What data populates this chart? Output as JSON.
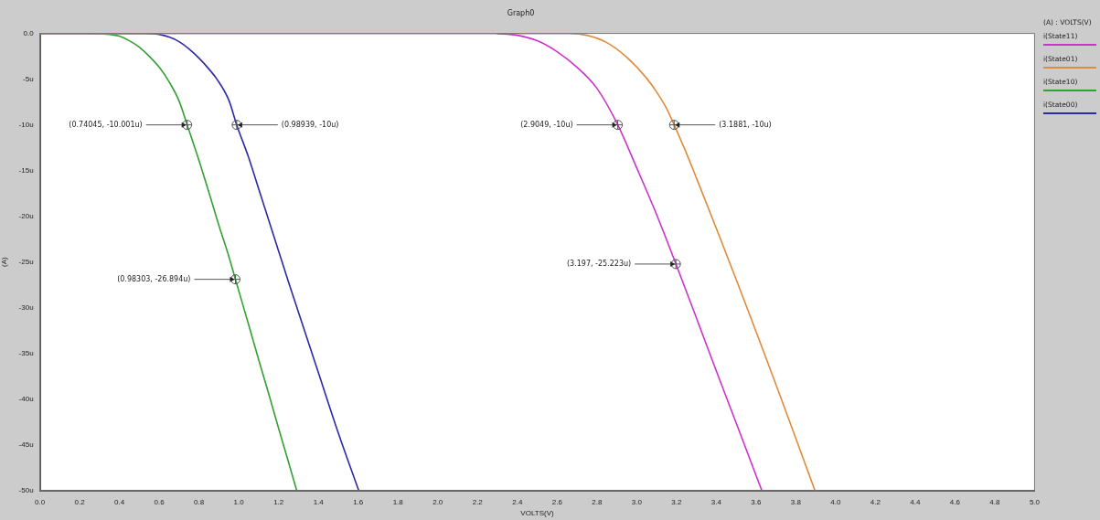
{
  "chart_data": {
    "type": "line",
    "title": "Graph0",
    "xlabel": "VOLTS(V)",
    "ylabel": "(A)",
    "legend_title": "(A) : VOLTS(V)",
    "legend": "right",
    "grid": false,
    "marker": "none",
    "line_style": "solid",
    "xlim": [
      0,
      5
    ],
    "ylim": [
      -50,
      0
    ],
    "xticks": [
      {
        "value": 0,
        "label": "0.0"
      },
      0.2,
      0.4,
      0.6,
      0.8,
      {
        "value": 1,
        "label": "1.0"
      },
      1.2,
      1.4,
      1.6,
      1.8,
      {
        "value": 2,
        "label": "2.0"
      },
      2.2,
      2.4,
      2.6,
      2.8,
      {
        "value": 3,
        "label": "3.0"
      },
      3.2,
      3.4,
      3.6,
      3.8,
      {
        "value": 4,
        "label": "4.0"
      },
      4.2,
      4.4,
      4.6,
      4.8,
      {
        "value": 5,
        "label": "5.0"
      }
    ],
    "yticks": [
      {
        "value": 0,
        "label": "0.0"
      },
      {
        "value": -5,
        "label": "-5u"
      },
      {
        "value": -10,
        "label": "-10u"
      },
      {
        "value": -15,
        "label": "-15u"
      },
      {
        "value": -20,
        "label": "-20u"
      },
      {
        "value": -25,
        "label": "-25u"
      },
      {
        "value": -30,
        "label": "-30u"
      },
      {
        "value": -35,
        "label": "-35u"
      },
      {
        "value": -40,
        "label": "-40u"
      },
      {
        "value": -45,
        "label": "-45u"
      },
      {
        "value": -50,
        "label": "-50u"
      }
    ],
    "series": [
      {
        "name": "i(State11)",
        "color": "#cc33cc",
        "x": [
          2.297,
          2.4,
          2.5,
          2.6,
          2.7,
          2.8,
          2.9049,
          3.0,
          3.1,
          3.197,
          3.3,
          3.4,
          3.5,
          3.629
        ],
        "values": [
          0,
          -0.2,
          -0.8,
          -2.0,
          -3.7,
          -6.0,
          -10,
          -14.7,
          -19.8,
          -25.2,
          -31.1,
          -36.9,
          -42.6,
          -50
        ]
      },
      {
        "name": "i(State01)",
        "color": "#e08a3c",
        "x": [
          0,
          2.66,
          2.75,
          2.85,
          2.95,
          3.05,
          3.1,
          3.15,
          3.1881,
          3.25,
          3.3,
          3.4,
          3.5,
          3.6,
          3.7,
          3.8,
          3.896
        ],
        "values": [
          0,
          0,
          -0.2,
          -1.0,
          -2.6,
          -4.9,
          -6.4,
          -8.2,
          -10,
          -13.1,
          -15.8,
          -21.3,
          -26.9,
          -32.6,
          -38.4,
          -44.3,
          -50
        ]
      },
      {
        "name": "i(State10)",
        "color": "#33a033",
        "x": [
          0,
          0.262,
          0.35,
          0.4,
          0.45,
          0.5,
          0.55,
          0.6,
          0.65,
          0.7,
          0.74045,
          0.8,
          0.85,
          0.9,
          0.95,
          0.98303,
          1.05,
          1.1,
          1.15,
          1.2,
          1.25,
          1.291
        ],
        "values": [
          0,
          0,
          -0.1,
          -0.3,
          -0.8,
          -1.5,
          -2.5,
          -3.7,
          -5.3,
          -7.4,
          -10,
          -13.9,
          -17.4,
          -21.0,
          -24.4,
          -26.9,
          -31.9,
          -35.7,
          -39.4,
          -43.2,
          -46.9,
          -50
        ]
      },
      {
        "name": "i(State00)",
        "color": "#2a2aa8",
        "x": [
          0,
          0.519,
          0.6,
          0.65,
          0.7,
          0.75,
          0.8,
          0.85,
          0.89,
          0.95,
          0.98939,
          1.05,
          1.1,
          1.15,
          1.2,
          1.25,
          1.3,
          1.4,
          1.5,
          1.603
        ],
        "values": [
          0,
          0,
          -0.1,
          -0.4,
          -0.9,
          -1.7,
          -2.7,
          -3.9,
          -5.0,
          -7.3,
          -10,
          -13.6,
          -17.0,
          -20.4,
          -23.8,
          -27.2,
          -30.5,
          -37.1,
          -43.7,
          -50
        ]
      }
    ],
    "annotations": [
      {
        "text": "(0.74045, -10.001u)",
        "x": 0.74045,
        "y": -10.001
      },
      {
        "text": "(0.98939, -10u)",
        "x": 0.98939,
        "y": -10
      },
      {
        "text": "(0.98303, -26.894u)",
        "x": 0.98303,
        "y": -26.894
      },
      {
        "text": "(2.9049, -10u)",
        "x": 2.9049,
        "y": -10
      },
      {
        "text": "(3.1881, -10u)",
        "x": 3.1881,
        "y": -10
      },
      {
        "text": "(3.197, -25.223u)",
        "x": 3.197,
        "y": -25.223
      }
    ]
  }
}
